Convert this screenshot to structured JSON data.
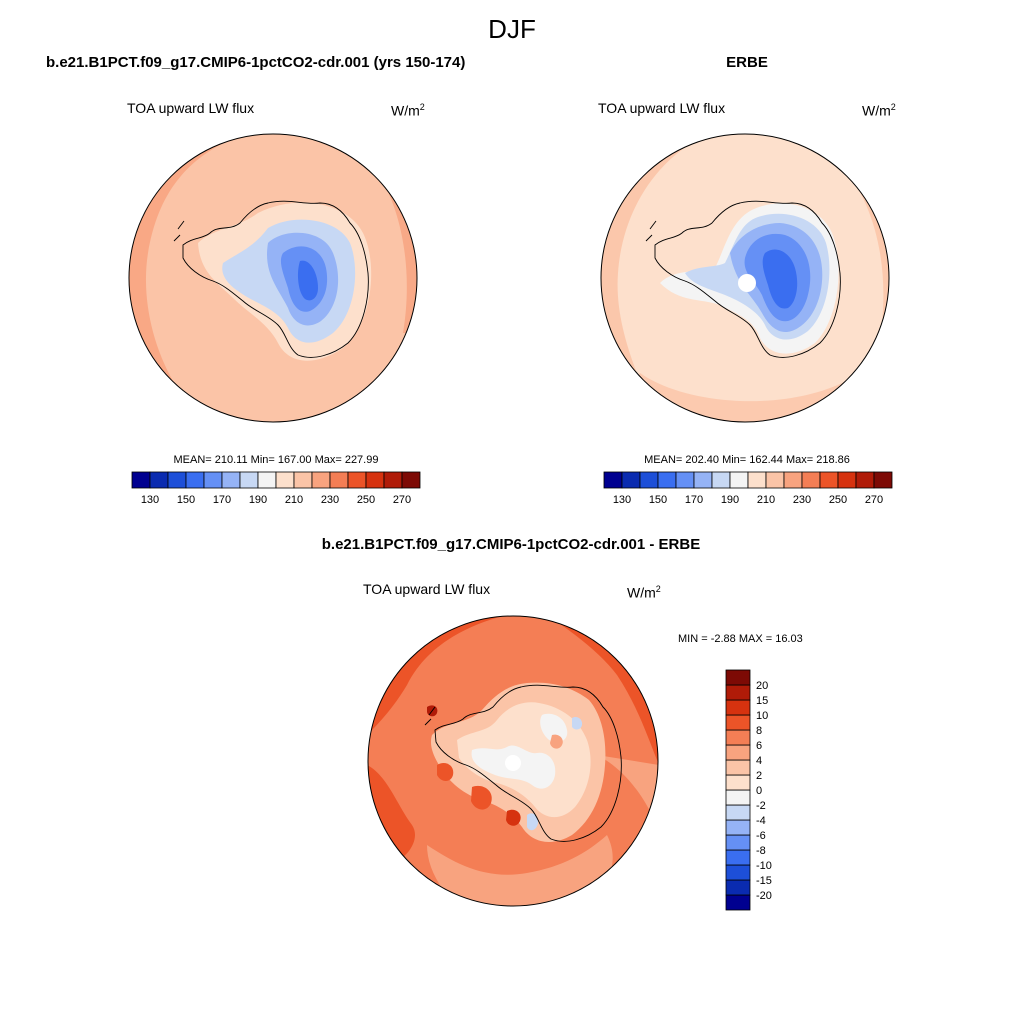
{
  "figure": {
    "title": "DJF"
  },
  "panels": [
    {
      "title": "b.e21.B1PCT.f09_g17.CMIP6-1pctCO2-cdr.001 (yrs 150-174)",
      "variable": "TOA upward LW flux",
      "units_base": "W/m",
      "units_exp": "2",
      "stats": {
        "mean": "210.11",
        "min": "167.00",
        "max": "227.99"
      },
      "stats_text": "MEAN= 210.11  Min= 167.00  Max= 227.99"
    },
    {
      "title": "ERBE",
      "variable": "TOA upward LW flux",
      "units_base": "W/m",
      "units_exp": "2",
      "stats": {
        "mean": "202.40",
        "min": "162.44",
        "max": "218.86"
      },
      "stats_text": "MEAN= 202.40  Min= 162.44  Max= 218.86"
    },
    {
      "title": "b.e21.B1PCT.f09_g17.CMIP6-1pctCO2-cdr.001 - ERBE",
      "variable": "TOA upward LW flux",
      "units_base": "W/m",
      "units_exp": "2",
      "stats": {
        "min": "-2.88",
        "max": "16.03"
      },
      "stats_text": "MIN =  -2.88 MAX =  16.03"
    }
  ],
  "colorbars": {
    "absolute": {
      "colors": [
        "#000090",
        "#0a2bb0",
        "#1d4fd8",
        "#3a6ef0",
        "#6590f5",
        "#95b3f6",
        "#c7d8f4",
        "#f4f4f4",
        "#fde0cc",
        "#fbc4a7",
        "#f8a37f",
        "#f47e55",
        "#ec5428",
        "#d6320f",
        "#b01b08",
        "#7d0a05"
      ],
      "labels": [
        "130",
        "150",
        "170",
        "190",
        "210",
        "230",
        "250",
        "270"
      ]
    },
    "difference": {
      "colors": [
        "#000090",
        "#0a2bb0",
        "#1d4fd8",
        "#3a6ef0",
        "#6590f5",
        "#95b3f6",
        "#c7d8f4",
        "#f4f4f4",
        "#fde0cc",
        "#fbc4a7",
        "#f8a37f",
        "#f47e55",
        "#ec5428",
        "#d6320f",
        "#b01b08",
        "#7d0a05"
      ],
      "labels": [
        "-20",
        "-15",
        "-10",
        "-8",
        "-6",
        "-4",
        "-2",
        "0",
        "2",
        "4",
        "6",
        "8",
        "10",
        "15",
        "20"
      ]
    }
  },
  "chart_data": [
    {
      "type": "heatmap",
      "projection": "south-polar-stereographic",
      "title": "b.e21.B1PCT.f09_g17.CMIP6-1pctCO2-cdr.001 (yrs 150-174)",
      "variable": "TOA upward LW flux",
      "units": "W/m2",
      "mean": 210.11,
      "min": 167.0,
      "max": 227.99,
      "contour_levels": [
        130,
        140,
        150,
        160,
        170,
        180,
        190,
        200,
        210,
        220,
        230,
        240,
        250,
        260,
        270
      ]
    },
    {
      "type": "heatmap",
      "projection": "south-polar-stereographic",
      "title": "ERBE",
      "variable": "TOA upward LW flux",
      "units": "W/m2",
      "mean": 202.4,
      "min": 162.44,
      "max": 218.86,
      "contour_levels": [
        130,
        140,
        150,
        160,
        170,
        180,
        190,
        200,
        210,
        220,
        230,
        240,
        250,
        260,
        270
      ]
    },
    {
      "type": "heatmap",
      "projection": "south-polar-stereographic",
      "title": "b.e21.B1PCT.f09_g17.CMIP6-1pctCO2-cdr.001 - ERBE",
      "variable": "TOA upward LW flux",
      "units": "W/m2",
      "min": -2.88,
      "max": 16.03,
      "contour_levels": [
        -20,
        -15,
        -10,
        -8,
        -6,
        -4,
        -2,
        0,
        2,
        4,
        6,
        8,
        10,
        15,
        20
      ]
    }
  ]
}
